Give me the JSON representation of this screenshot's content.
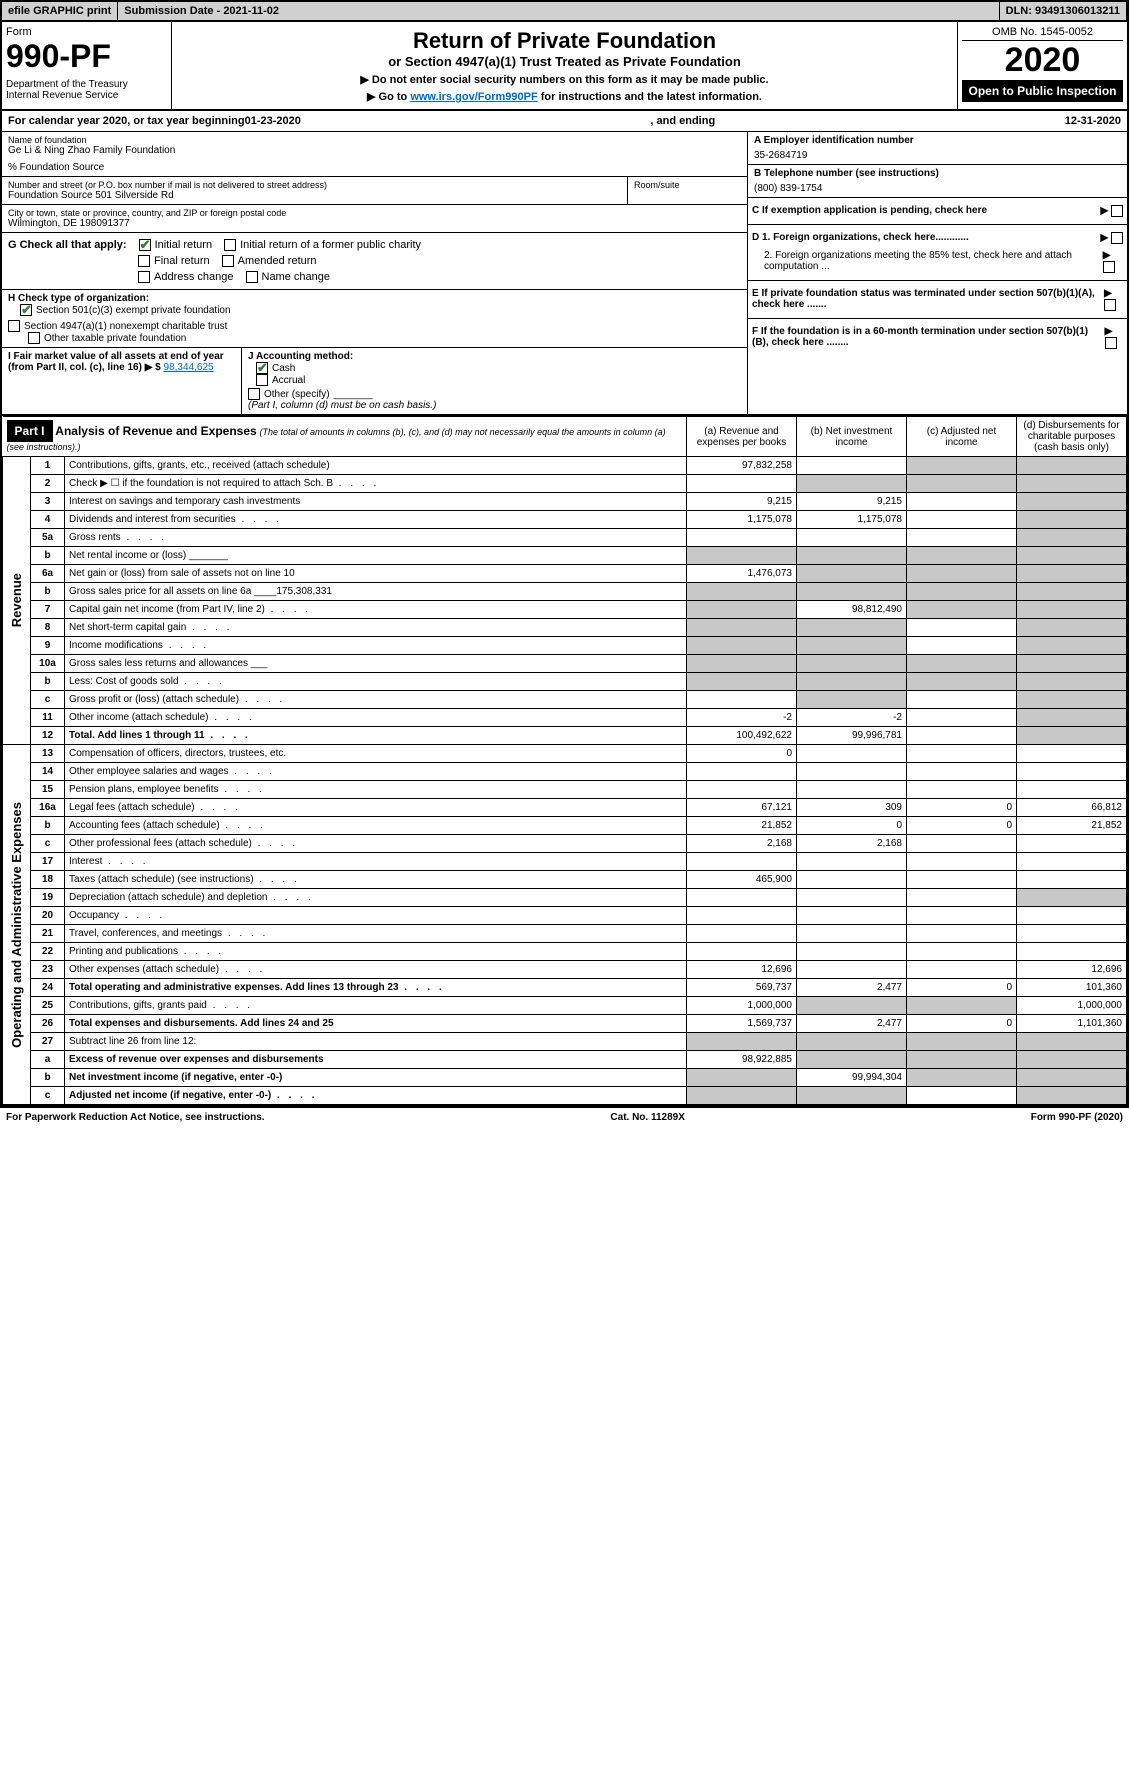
{
  "topbar": {
    "efile": "efile GRAPHIC print",
    "submission_label": "Submission Date - 2021-11-02",
    "dln": "DLN: 93491306013211"
  },
  "header": {
    "form_word": "Form",
    "form_number": "990-PF",
    "dept": "Department of the Treasury",
    "irs": "Internal Revenue Service",
    "title": "Return of Private Foundation",
    "subtitle": "or Section 4947(a)(1) Trust Treated as Private Foundation",
    "inst1": "▶ Do not enter social security numbers on this form as it may be made public.",
    "inst2_pre": "▶ Go to ",
    "inst2_link": "www.irs.gov/Form990PF",
    "inst2_post": " for instructions and the latest information.",
    "omb": "OMB No. 1545-0052",
    "year": "2020",
    "open": "Open to Public Inspection"
  },
  "cal": {
    "text_pre": "For calendar year 2020, or tax year beginning ",
    "begin": "01-23-2020",
    "text_mid": ", and ending ",
    "end": "12-31-2020"
  },
  "info": {
    "name_label": "Name of foundation",
    "name": "Ge Li & Ning Zhao Family Foundation",
    "care_of": "% Foundation Source",
    "addr_label": "Number and street (or P.O. box number if mail is not delivered to street address)",
    "addr": "Foundation Source 501 Silverside Rd",
    "room_label": "Room/suite",
    "city_label": "City or town, state or province, country, and ZIP or foreign postal code",
    "city": "Wilmington, DE  198091377",
    "ein_label": "A Employer identification number",
    "ein": "35-2684719",
    "tel_label": "B Telephone number (see instructions)",
    "tel": "(800) 839-1754",
    "c_label": "C If exemption application is pending, check here",
    "d1": "D 1. Foreign organizations, check here............",
    "d2": "2. Foreign organizations meeting the 85% test, check here and attach computation ...",
    "e_label": "E  If private foundation status was terminated under section 507(b)(1)(A), check here .......",
    "f_label": "F  If the foundation is in a 60-month termination under section 507(b)(1)(B), check here ........"
  },
  "g": {
    "label": "G Check all that apply:",
    "initial": "Initial return",
    "initial_former": "Initial return of a former public charity",
    "final": "Final return",
    "amended": "Amended return",
    "addr_change": "Address change",
    "name_change": "Name change"
  },
  "h": {
    "label": "H Check type of organization:",
    "s501": "Section 501(c)(3) exempt private foundation",
    "s4947": "Section 4947(a)(1) nonexempt charitable trust",
    "other": "Other taxable private foundation"
  },
  "i": {
    "label": "I Fair market value of all assets at end of year (from Part II, col. (c), line 16) ▶ $",
    "value": "98,344,625"
  },
  "j": {
    "label": "J Accounting method:",
    "cash": "Cash",
    "accrual": "Accrual",
    "other": "Other (specify)",
    "note": "(Part I, column (d) must be on cash basis.)"
  },
  "part1": {
    "badge": "Part I",
    "title": "Analysis of Revenue and Expenses",
    "note": "(The total of amounts in columns (b), (c), and (d) may not necessarily equal the amounts in column (a) (see instructions).)",
    "col_a": "(a)  Revenue and expenses per books",
    "col_b": "(b)  Net investment income",
    "col_c": "(c)  Adjusted net income",
    "col_d": "(d)  Disbursements for charitable purposes (cash basis only)"
  },
  "sides": {
    "revenue": "Revenue",
    "expenses": "Operating and Administrative Expenses"
  },
  "rows": [
    {
      "n": "1",
      "d": "Contributions, gifts, grants, etc., received (attach schedule)",
      "a": "97,832,258",
      "b": "",
      "c": "g",
      "dv": "g"
    },
    {
      "n": "2",
      "d": "Check ▶ ☐ if the foundation is not required to attach Sch. B",
      "a": "",
      "b": "g",
      "c": "g",
      "dv": "g",
      "dots": true
    },
    {
      "n": "3",
      "d": "Interest on savings and temporary cash investments",
      "a": "9,215",
      "b": "9,215",
      "c": "",
      "dv": "g"
    },
    {
      "n": "4",
      "d": "Dividends and interest from securities",
      "a": "1,175,078",
      "b": "1,175,078",
      "c": "",
      "dv": "g",
      "dots": true
    },
    {
      "n": "5a",
      "d": "Gross rents",
      "a": "",
      "b": "",
      "c": "",
      "dv": "g",
      "dots": true
    },
    {
      "n": "b",
      "d": "Net rental income or (loss)  _______",
      "a": "g",
      "b": "g",
      "c": "g",
      "dv": "g"
    },
    {
      "n": "6a",
      "d": "Net gain or (loss) from sale of assets not on line 10",
      "a": "1,476,073",
      "b": "g",
      "c": "g",
      "dv": "g"
    },
    {
      "n": "b",
      "d": "Gross sales price for all assets on line 6a ____175,308,331",
      "a": "g",
      "b": "g",
      "c": "g",
      "dv": "g"
    },
    {
      "n": "7",
      "d": "Capital gain net income (from Part IV, line 2)",
      "a": "g",
      "b": "98,812,490",
      "c": "g",
      "dv": "g",
      "dots": true
    },
    {
      "n": "8",
      "d": "Net short-term capital gain",
      "a": "g",
      "b": "g",
      "c": "",
      "dv": "g",
      "dots": true
    },
    {
      "n": "9",
      "d": "Income modifications",
      "a": "g",
      "b": "g",
      "c": "",
      "dv": "g",
      "dots": true
    },
    {
      "n": "10a",
      "d": "Gross sales less returns and allowances  ___",
      "a": "g",
      "b": "g",
      "c": "g",
      "dv": "g"
    },
    {
      "n": "b",
      "d": "Less: Cost of goods sold",
      "a": "g",
      "b": "g",
      "c": "g",
      "dv": "g",
      "dots": true
    },
    {
      "n": "c",
      "d": "Gross profit or (loss) (attach schedule)",
      "a": "",
      "b": "g",
      "c": "",
      "dv": "g",
      "dots": true
    },
    {
      "n": "11",
      "d": "Other income (attach schedule)",
      "a": "-2",
      "b": "-2",
      "c": "",
      "dv": "g",
      "dots": true
    },
    {
      "n": "12",
      "d": "Total. Add lines 1 through 11",
      "a": "100,492,622",
      "b": "99,996,781",
      "c": "",
      "dv": "g",
      "bold": true,
      "dots": true
    },
    {
      "n": "13",
      "d": "Compensation of officers, directors, trustees, etc.",
      "a": "0",
      "b": "",
      "c": "",
      "dv": ""
    },
    {
      "n": "14",
      "d": "Other employee salaries and wages",
      "a": "",
      "b": "",
      "c": "",
      "dv": "",
      "dots": true
    },
    {
      "n": "15",
      "d": "Pension plans, employee benefits",
      "a": "",
      "b": "",
      "c": "",
      "dv": "",
      "dots": true
    },
    {
      "n": "16a",
      "d": "Legal fees (attach schedule)",
      "a": "67,121",
      "b": "309",
      "c": "0",
      "dv": "66,812",
      "dots": true
    },
    {
      "n": "b",
      "d": "Accounting fees (attach schedule)",
      "a": "21,852",
      "b": "0",
      "c": "0",
      "dv": "21,852",
      "dots": true
    },
    {
      "n": "c",
      "d": "Other professional fees (attach schedule)",
      "a": "2,168",
      "b": "2,168",
      "c": "",
      "dv": "",
      "dots": true
    },
    {
      "n": "17",
      "d": "Interest",
      "a": "",
      "b": "",
      "c": "",
      "dv": "",
      "dots": true
    },
    {
      "n": "18",
      "d": "Taxes (attach schedule) (see instructions)",
      "a": "465,900",
      "b": "",
      "c": "",
      "dv": "",
      "dots": true
    },
    {
      "n": "19",
      "d": "Depreciation (attach schedule) and depletion",
      "a": "",
      "b": "",
      "c": "",
      "dv": "g",
      "dots": true
    },
    {
      "n": "20",
      "d": "Occupancy",
      "a": "",
      "b": "",
      "c": "",
      "dv": "",
      "dots": true
    },
    {
      "n": "21",
      "d": "Travel, conferences, and meetings",
      "a": "",
      "b": "",
      "c": "",
      "dv": "",
      "dots": true
    },
    {
      "n": "22",
      "d": "Printing and publications",
      "a": "",
      "b": "",
      "c": "",
      "dv": "",
      "dots": true
    },
    {
      "n": "23",
      "d": "Other expenses (attach schedule)",
      "a": "12,696",
      "b": "",
      "c": "",
      "dv": "12,696",
      "dots": true
    },
    {
      "n": "24",
      "d": "Total operating and administrative expenses. Add lines 13 through 23",
      "a": "569,737",
      "b": "2,477",
      "c": "0",
      "dv": "101,360",
      "bold": true,
      "dots": true
    },
    {
      "n": "25",
      "d": "Contributions, gifts, grants paid",
      "a": "1,000,000",
      "b": "g",
      "c": "g",
      "dv": "1,000,000",
      "dots": true
    },
    {
      "n": "26",
      "d": "Total expenses and disbursements. Add lines 24 and 25",
      "a": "1,569,737",
      "b": "2,477",
      "c": "0",
      "dv": "1,101,360",
      "bold": true
    },
    {
      "n": "27",
      "d": "Subtract line 26 from line 12:",
      "a": "g",
      "b": "g",
      "c": "g",
      "dv": "g"
    },
    {
      "n": "a",
      "d": "Excess of revenue over expenses and disbursements",
      "a": "98,922,885",
      "b": "g",
      "c": "g",
      "dv": "g",
      "bold": true
    },
    {
      "n": "b",
      "d": "Net investment income (if negative, enter -0-)",
      "a": "g",
      "b": "99,994,304",
      "c": "g",
      "dv": "g",
      "bold": true
    },
    {
      "n": "c",
      "d": "Adjusted net income (if negative, enter -0-)",
      "a": "g",
      "b": "g",
      "c": "",
      "dv": "g",
      "bold": true,
      "dots": true
    }
  ],
  "footer": {
    "pra": "For Paperwork Reduction Act Notice, see instructions.",
    "cat": "Cat. No. 11289X",
    "form": "Form 990-PF (2020)"
  }
}
